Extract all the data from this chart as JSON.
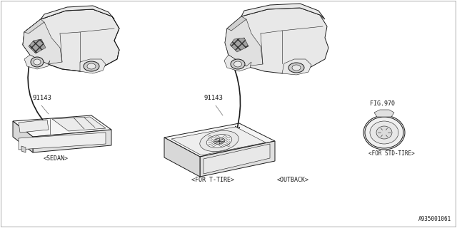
{
  "bg_color": "#ffffff",
  "line_color": "#1a1a1a",
  "diagram_id": "A935001061",
  "labels": {
    "part_number_left": "91143",
    "part_number_right": "91143",
    "fig_ref": "FIG.970",
    "caption_sedan": "<SEDAN>",
    "caption_t_tire": "<FOR T-TIRE>",
    "caption_outback": "<OUTBACK>",
    "caption_std_tire": "<FOR STD-TIRE>"
  },
  "font_size": 6.0,
  "lw_main": 0.7,
  "lw_thin": 0.4,
  "gray_fill": "#e8e8e8",
  "hatch_gray": "#888888"
}
